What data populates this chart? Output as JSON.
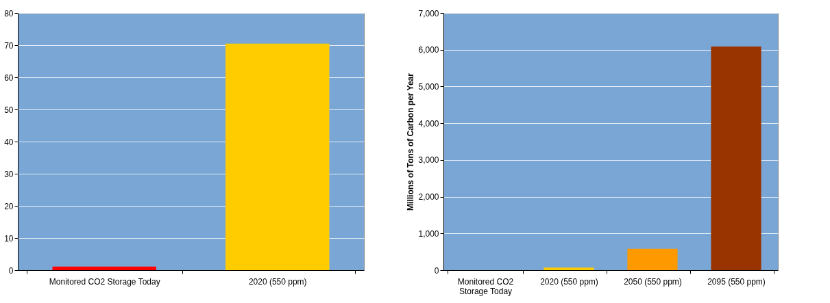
{
  "chart_data": [
    {
      "type": "bar",
      "categories": [
        "Monitored CO2 Storage Today",
        "2020 (550 ppm)"
      ],
      "values": [
        1.1,
        70.5
      ],
      "colors": [
        "#ff0000",
        "#ffcc00"
      ],
      "ylim": [
        0,
        80
      ],
      "yticks": [
        0,
        10,
        20,
        30,
        40,
        50,
        60,
        70,
        80
      ],
      "grid": "y"
    },
    {
      "type": "bar",
      "ylabel": "Millions of Tons of Carbon per Year",
      "categories": [
        "Monitored CO2 Storage Today",
        "2020 (550 ppm)",
        "2050 (550 ppm)",
        "2095 (550 ppm)"
      ],
      "values": [
        0,
        70,
        580,
        6090
      ],
      "colors": [
        "#ff0000",
        "#ffcc00",
        "#ff9900",
        "#993300"
      ],
      "ylim": [
        0,
        7000
      ],
      "yticks": [
        0,
        {
          "value": 1000,
          "label": "1,000"
        },
        {
          "value": 2000,
          "label": "2,000"
        },
        {
          "value": 3000,
          "label": "3,000"
        },
        {
          "value": 4000,
          "label": "4,000"
        },
        {
          "value": 5000,
          "label": "5,000"
        },
        {
          "value": 6000,
          "label": "6,000"
        },
        {
          "value": 7000,
          "label": "7,000"
        }
      ],
      "grid": "y"
    }
  ]
}
